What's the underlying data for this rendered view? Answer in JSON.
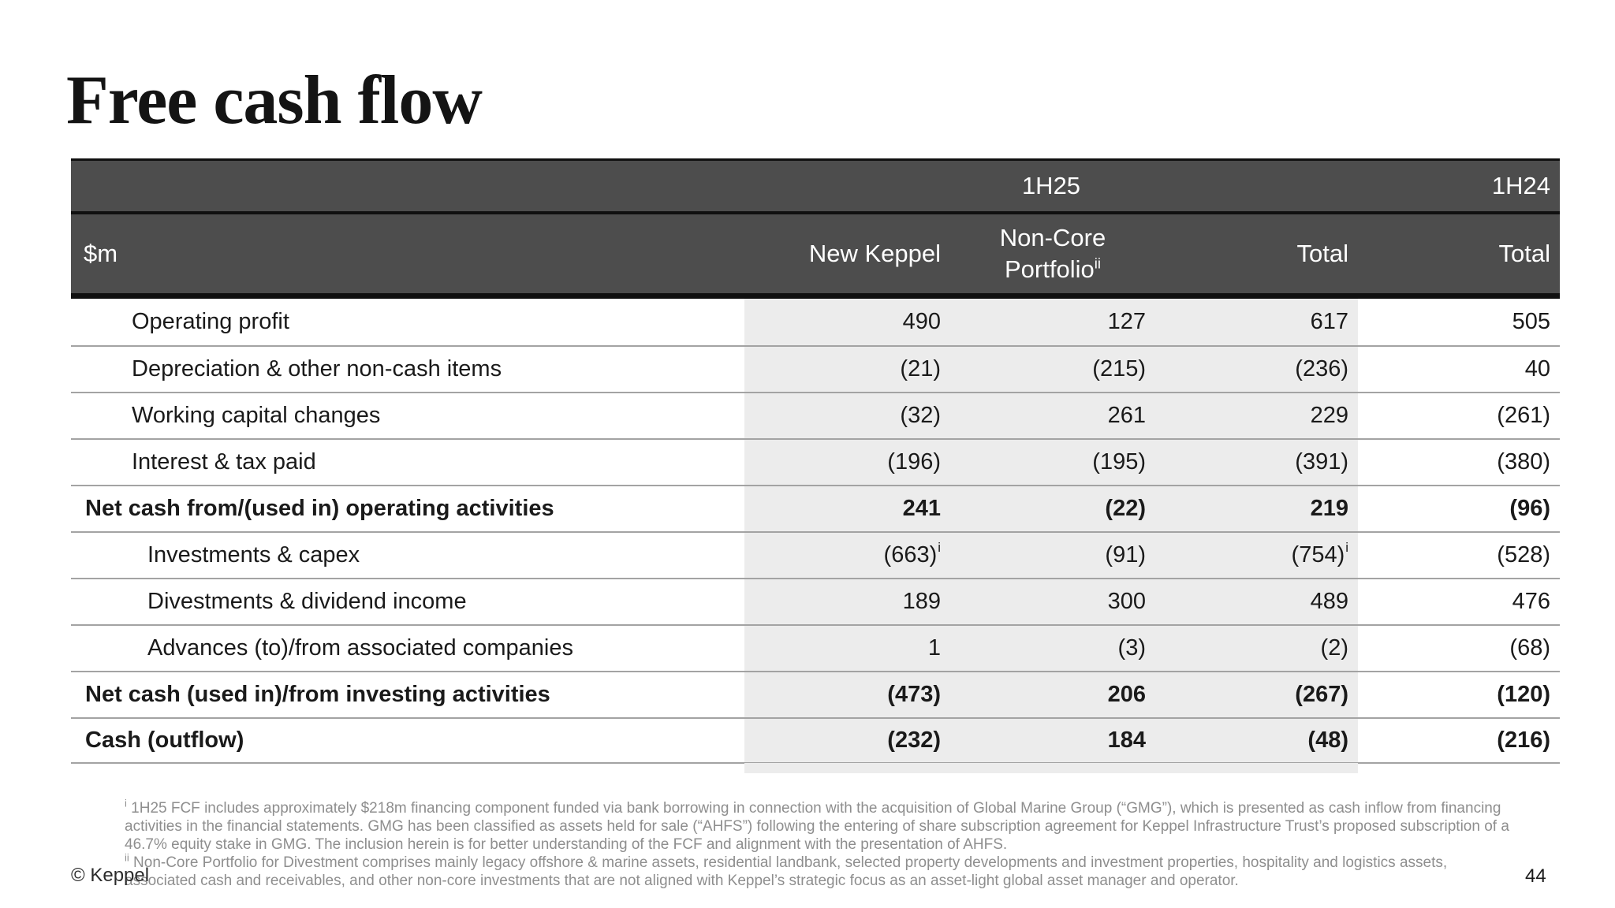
{
  "slide": {
    "title": "Free cash flow",
    "copyright": "© Keppel",
    "page_number": "44"
  },
  "table": {
    "unit": "$m",
    "period_current": "1H25",
    "period_prior": "1H24",
    "columns": {
      "col1": "New Keppel",
      "col2_line1": "Non-Core",
      "col2_line2": "Portfolio",
      "col2_sup": "ii",
      "col3": "Total",
      "col4": "Total"
    },
    "rows": [
      {
        "label": "Operating profit",
        "values": [
          "490",
          "127",
          "617",
          "505"
        ]
      },
      {
        "label": "Depreciation & other non-cash items",
        "values": [
          "(21)",
          "(215)",
          "(236)",
          "40"
        ]
      },
      {
        "label": "Working capital changes",
        "values": [
          "(32)",
          "261",
          "229",
          "(261)"
        ]
      },
      {
        "label": "Interest & tax paid",
        "values": [
          "(196)",
          "(195)",
          "(391)",
          "(380)"
        ]
      },
      {
        "label": "Net cash from/(used in) operating activities",
        "values": [
          "241",
          "(22)",
          "219",
          "(96)"
        ]
      },
      {
        "label": "Investments & capex",
        "values": [
          "(663)",
          "(91)",
          "(754)",
          "(528)"
        ],
        "sups": [
          "i",
          "",
          "i",
          ""
        ]
      },
      {
        "label": "Divestments & dividend income",
        "values": [
          "189",
          "300",
          "489",
          "476"
        ]
      },
      {
        "label": "Advances (to)/from associated companies",
        "values": [
          "1",
          "(3)",
          "(2)",
          "(68)"
        ]
      },
      {
        "label": "Net cash (used in)/from investing activities",
        "values": [
          "(473)",
          "206",
          "(267)",
          "(120)"
        ]
      },
      {
        "label": "Cash (outflow)",
        "values": [
          "(232)",
          "184",
          "(48)",
          "(216)"
        ]
      }
    ]
  },
  "footnotes": [
    {
      "marker": "i",
      "text": "1H25 FCF includes approximately $218m financing component funded via bank borrowing in connection with the acquisition of Global Marine Group (“GMG”), which is presented as cash inflow from financing activities in the financial statements. GMG has been classified as assets held for sale (“AHFS”) following the entering of share subscription agreement for Keppel Infrastructure Trust’s proposed subscription of a 46.7% equity stake in GMG. The inclusion herein is for better understanding of the FCF and alignment with the presentation of AHFS."
    },
    {
      "marker": "ii",
      "text": "Non-Core Portfolio for Divestment comprises mainly legacy offshore & marine assets, residential landbank, selected property developments and investment properties, hospitality and logistics assets, associated cash and receivables, and other non-core investments that are not aligned with Keppel’s strategic focus as an asset-light global asset manager and operator."
    }
  ],
  "colors": {
    "header_background": "#4d4d4d",
    "header_text": "#ffffff",
    "highlight_band": "#ececec",
    "row_divider": "#a3a3a3",
    "footnote_text": "#8e8e8e"
  }
}
